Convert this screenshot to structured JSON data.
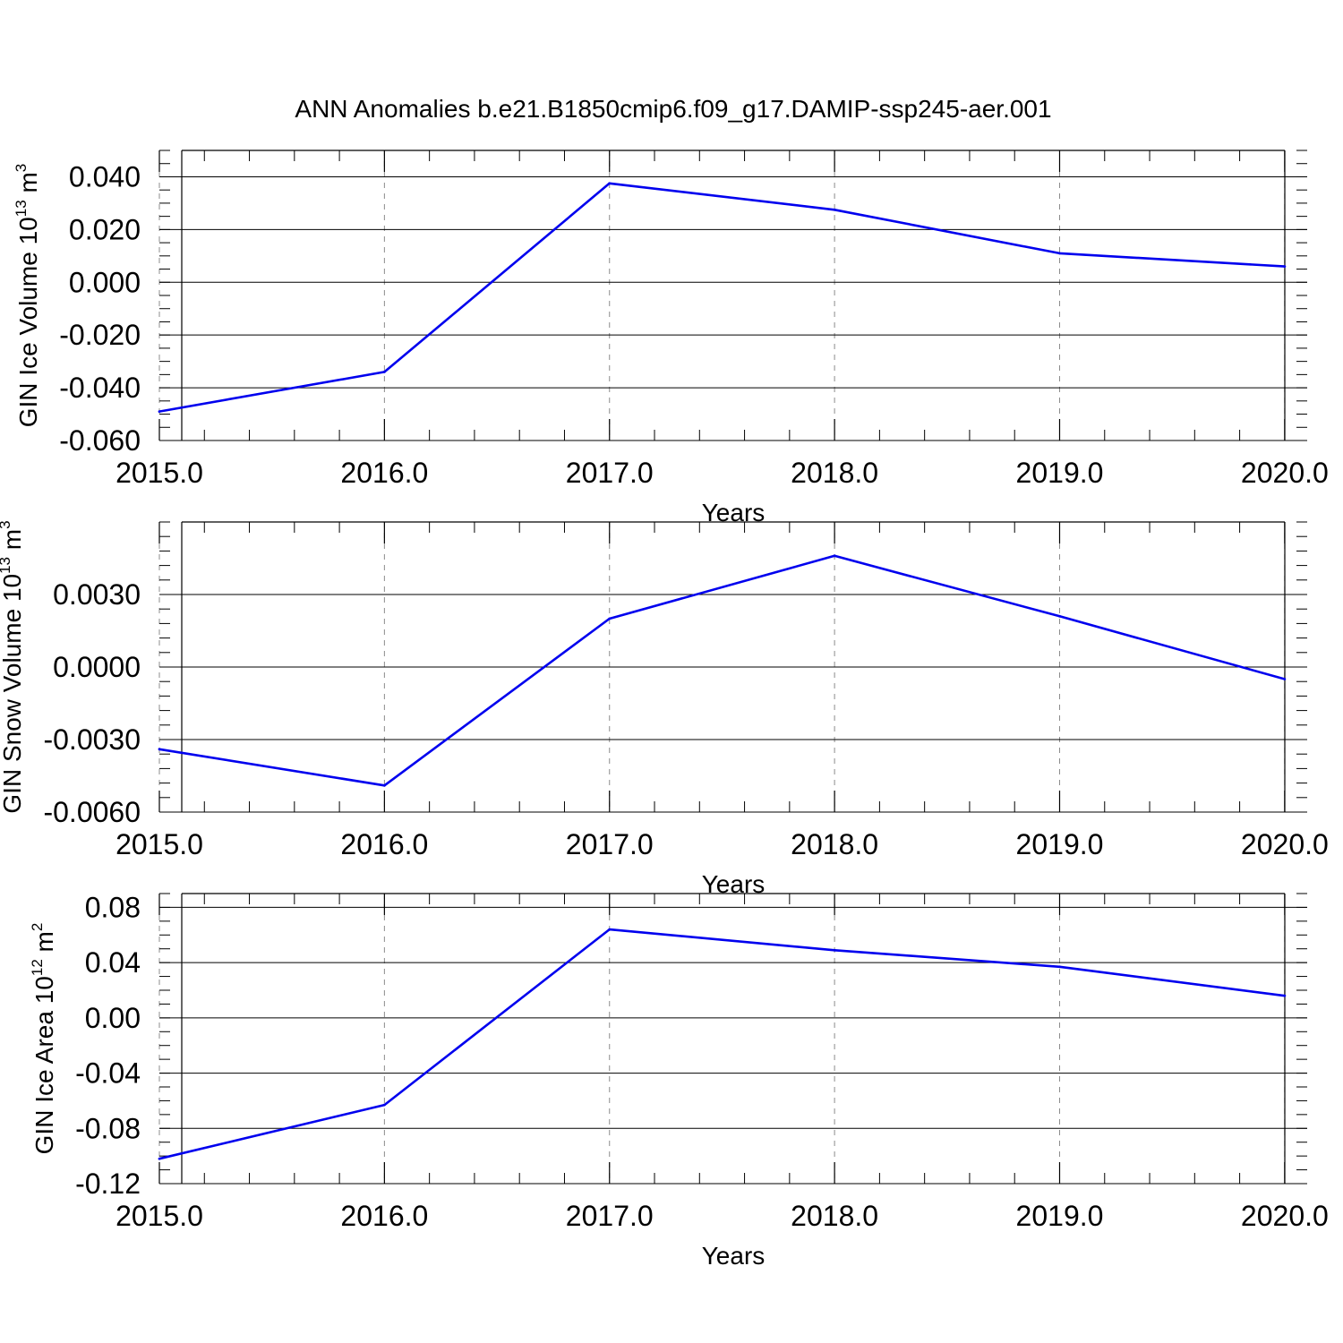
{
  "figure_title": "ANN Anomalies b.e21.B1850cmip6.f09_g17.DAMIP-ssp245-aer.001",
  "colors": {
    "line": "#0000ee",
    "axes": "#000000",
    "grid": "#8c8c8c"
  },
  "chart_data": [
    {
      "type": "line",
      "ylabel": {
        "base": "GIN Ice Volume 10",
        "sup1": "13",
        "mid": " m",
        "sup2": "3"
      },
      "xlabel": "Years",
      "xlim": [
        2015,
        2020.1
      ],
      "ylim": [
        -0.06,
        0.05
      ],
      "x_ticks": [
        2015,
        2016,
        2017,
        2018,
        2019,
        2020
      ],
      "x_tick_labels": [
        "2015.0",
        "2016.0",
        "2017.0",
        "2018.0",
        "2019.0",
        "2020.0"
      ],
      "y_ticks": [
        -0.06,
        -0.04,
        -0.02,
        0.0,
        0.02,
        0.04
      ],
      "y_tick_labels": [
        "-0.060",
        "-0.040",
        "-0.020",
        "0.000",
        "0.020",
        "0.040"
      ],
      "y_minor_step": 0.005,
      "grid": "vertical dashed",
      "x": [
        2015,
        2016,
        2017,
        2018,
        2019,
        2020
      ],
      "series": [
        {
          "values": [
            -0.049,
            -0.034,
            0.0375,
            0.0275,
            0.011,
            0.006
          ]
        }
      ]
    },
    {
      "type": "line",
      "ylabel": {
        "base": "GIN Snow Volume 10",
        "sup1": "13",
        "mid": " m",
        "sup2": "3"
      },
      "xlabel": "Years",
      "xlim": [
        2015,
        2020.1
      ],
      "ylim": [
        -0.006,
        0.006
      ],
      "x_ticks": [
        2015,
        2016,
        2017,
        2018,
        2019,
        2020
      ],
      "x_tick_labels": [
        "2015.0",
        "2016.0",
        "2017.0",
        "2018.0",
        "2019.0",
        "2020.0"
      ],
      "y_ticks": [
        -0.006,
        -0.003,
        0.0,
        0.003
      ],
      "y_tick_labels": [
        "-0.0060",
        "-0.0030",
        "0.0000",
        "0.0030"
      ],
      "y_minor_step": 0.0006,
      "grid": "vertical dashed",
      "x": [
        2015,
        2016,
        2017,
        2018,
        2019,
        2020
      ],
      "series": [
        {
          "values": [
            -0.0034,
            -0.0049,
            0.002,
            0.0046,
            0.0021,
            -0.0005
          ]
        }
      ]
    },
    {
      "type": "line",
      "ylabel": {
        "base": "GIN Ice Area 10",
        "sup1": "12",
        "mid": " m",
        "sup2": "2"
      },
      "xlabel": "Years",
      "xlim": [
        2015,
        2020.1
      ],
      "ylim": [
        -0.12,
        0.09
      ],
      "x_ticks": [
        2015,
        2016,
        2017,
        2018,
        2019,
        2020
      ],
      "x_tick_labels": [
        "2015.0",
        "2016.0",
        "2017.0",
        "2018.0",
        "2019.0",
        "2020.0"
      ],
      "y_ticks": [
        -0.12,
        -0.08,
        -0.04,
        0.0,
        0.04,
        0.08
      ],
      "y_tick_labels": [
        "-0.12",
        "-0.08",
        "-0.04",
        "0.00",
        "0.04",
        "0.08"
      ],
      "y_minor_step": 0.01,
      "grid": "vertical dashed",
      "x": [
        2015,
        2016,
        2017,
        2018,
        2019,
        2020
      ],
      "series": [
        {
          "values": [
            -0.102,
            -0.063,
            0.064,
            0.049,
            0.037,
            0.016
          ]
        }
      ]
    }
  ]
}
